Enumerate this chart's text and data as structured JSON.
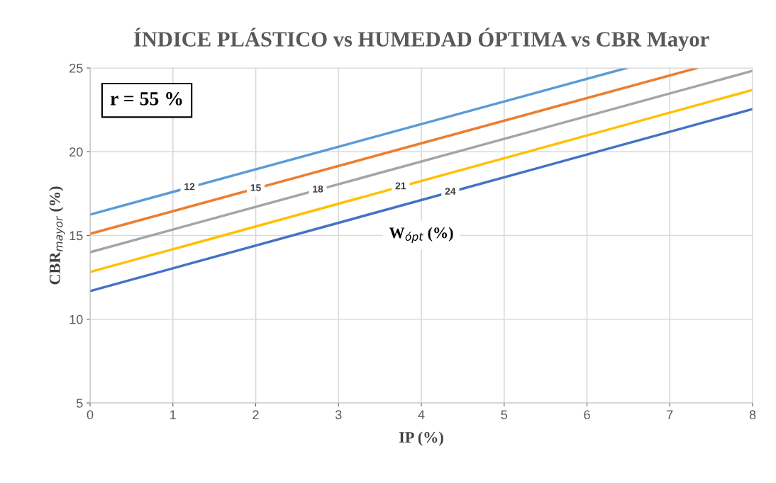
{
  "chart_data": {
    "type": "line",
    "title": "ÍNDICE PLÁSTICO vs HUMEDAD ÓPTIMA vs CBR Mayor",
    "xlabel": "IP (%)",
    "ylabel": "CBR$_{mayor}$ (%)",
    "legend_title": "W$_{ópt}$ (%)",
    "annotations": [
      "r = 55 %"
    ],
    "series": [
      {
        "name": "12",
        "color": "#5b9bd5",
        "x": [
          0,
          6.48
        ],
        "values": [
          16.25,
          25
        ]
      },
      {
        "name": "15",
        "color": "#ed7d31",
        "x": [
          0,
          7.33
        ],
        "values": [
          15.1,
          25
        ]
      },
      {
        "name": "18",
        "color": "#a5a5a5",
        "x": [
          0,
          8
        ],
        "values": [
          14.0,
          24.83
        ]
      },
      {
        "name": "21",
        "color": "#ffc000",
        "x": [
          0,
          8
        ],
        "values": [
          12.82,
          23.69
        ]
      },
      {
        "name": "24",
        "color": "#4472c4",
        "x": [
          0,
          8
        ],
        "values": [
          11.68,
          22.55
        ]
      }
    ],
    "xlim": [
      0,
      8
    ],
    "ylim": [
      5,
      25
    ],
    "xticks": [
      0,
      1,
      2,
      3,
      4,
      5,
      6,
      7,
      8
    ],
    "yticks": [
      5,
      10,
      15,
      20,
      25
    ],
    "grid": true,
    "marker": "none",
    "line_style": "solid"
  }
}
